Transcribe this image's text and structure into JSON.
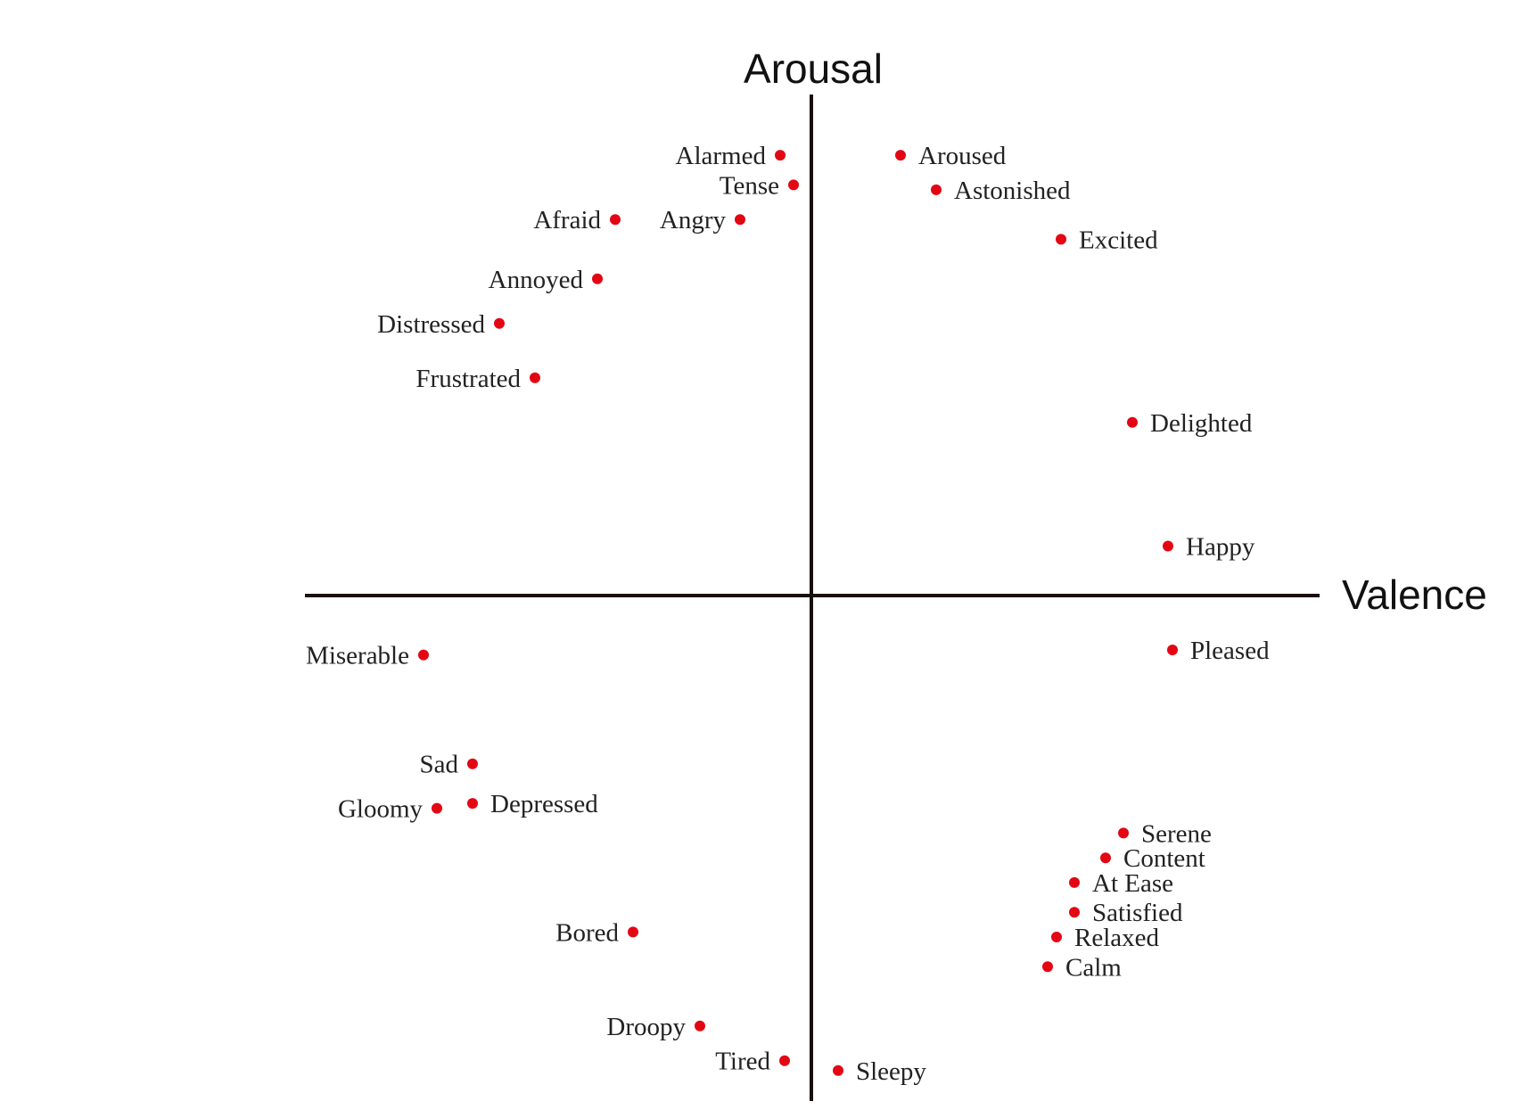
{
  "chart_data": {
    "type": "scatter",
    "title": "",
    "xlabel": "Valence",
    "ylabel": "Arousal",
    "xlim": [
      -1,
      1
    ],
    "ylim": [
      -1,
      1
    ],
    "grid": false,
    "legend": "none",
    "point_color": "#e30613",
    "points": [
      {
        "label": "Alarmed",
        "x": -0.07,
        "y": 0.89,
        "label_side": "left"
      },
      {
        "label": "Tense",
        "x": -0.04,
        "y": 0.83,
        "label_side": "left"
      },
      {
        "label": "Afraid",
        "x": -0.44,
        "y": 0.76,
        "label_side": "left"
      },
      {
        "label": "Angry",
        "x": -0.16,
        "y": 0.76,
        "label_side": "left"
      },
      {
        "label": "Annoyed",
        "x": -0.48,
        "y": 0.64,
        "label_side": "left"
      },
      {
        "label": "Distressed",
        "x": -0.7,
        "y": 0.55,
        "label_side": "left"
      },
      {
        "label": "Frustrated",
        "x": -0.62,
        "y": 0.44,
        "label_side": "left"
      },
      {
        "label": "Aroused",
        "x": 0.2,
        "y": 0.89,
        "label_side": "right"
      },
      {
        "label": "Astonished",
        "x": 0.28,
        "y": 0.82,
        "label_side": "right"
      },
      {
        "label": "Excited",
        "x": 0.56,
        "y": 0.72,
        "label_side": "right"
      },
      {
        "label": "Delighted",
        "x": 0.72,
        "y": 0.35,
        "label_side": "right"
      },
      {
        "label": "Happy",
        "x": 0.8,
        "y": 0.1,
        "label_side": "right"
      },
      {
        "label": "Pleased",
        "x": 0.81,
        "y": -0.11,
        "label_side": "right"
      },
      {
        "label": "Miserable",
        "x": -0.87,
        "y": -0.12,
        "label_side": "left"
      },
      {
        "label": "Sad",
        "x": -0.76,
        "y": -0.34,
        "label_side": "left"
      },
      {
        "label": "Gloomy",
        "x": -0.84,
        "y": -0.43,
        "label_side": "left"
      },
      {
        "label": "Depressed",
        "x": -0.76,
        "y": -0.42,
        "label_side": "right"
      },
      {
        "label": "Bored",
        "x": -0.4,
        "y": -0.68,
        "label_side": "left"
      },
      {
        "label": "Droopy",
        "x": -0.25,
        "y": -0.87,
        "label_side": "left"
      },
      {
        "label": "Tired",
        "x": -0.06,
        "y": -0.94,
        "label_side": "left"
      },
      {
        "label": "Sleepy",
        "x": 0.06,
        "y": -0.96,
        "label_side": "right"
      },
      {
        "label": "Serene",
        "x": 0.7,
        "y": -0.48,
        "label_side": "right"
      },
      {
        "label": "Content",
        "x": 0.66,
        "y": -0.53,
        "label_side": "right"
      },
      {
        "label": "At Ease",
        "x": 0.59,
        "y": -0.58,
        "label_side": "right"
      },
      {
        "label": "Satisfied",
        "x": 0.59,
        "y": -0.64,
        "label_side": "right"
      },
      {
        "label": "Relaxed",
        "x": 0.55,
        "y": -0.69,
        "label_side": "right"
      },
      {
        "label": "Calm",
        "x": 0.53,
        "y": -0.75,
        "label_side": "right"
      }
    ]
  }
}
